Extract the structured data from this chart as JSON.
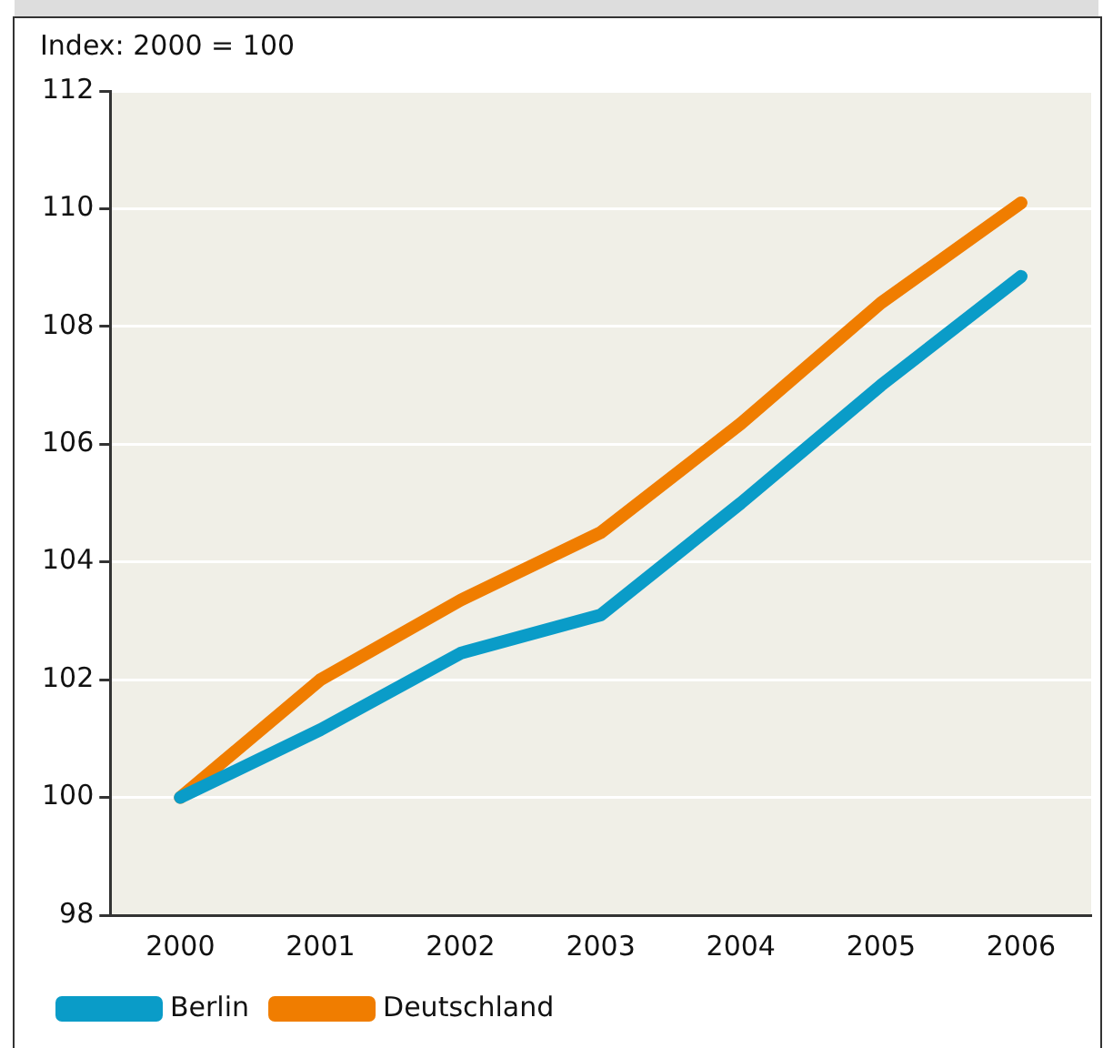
{
  "chart_data": {
    "type": "line",
    "ylabel": "Index: 2000 = 100",
    "categories": [
      "2000",
      "2001",
      "2002",
      "2003",
      "2004",
      "2005",
      "2006"
    ],
    "series": [
      {
        "name": "Berlin",
        "color": "#0a9cc8",
        "values": [
          100,
          101.15,
          102.45,
          103.1,
          105.0,
          107.0,
          108.85
        ]
      },
      {
        "name": "Deutschland",
        "color": "#f07d00",
        "values": [
          100,
          102.0,
          103.35,
          104.5,
          106.35,
          108.4,
          110.1
        ]
      }
    ],
    "ylim": [
      98,
      112
    ],
    "yticks": [
      98,
      100,
      102,
      104,
      106,
      108,
      110,
      112
    ],
    "grid": "y",
    "legend": "bottom",
    "marker": "none",
    "line_style": "solid"
  }
}
